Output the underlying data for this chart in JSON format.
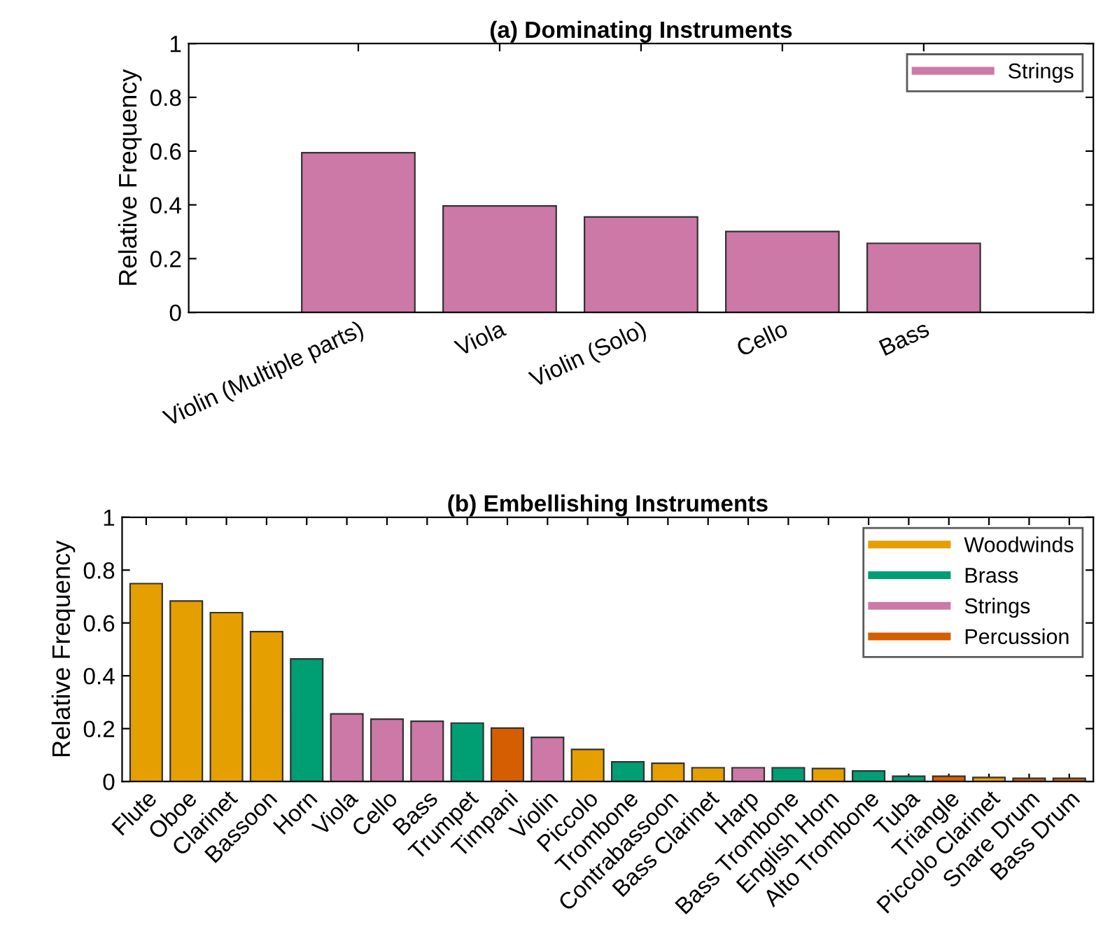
{
  "chart_data": [
    {
      "type": "bar",
      "title": "(a) Dominating Instruments",
      "ylabel": "Relative Frequency",
      "categories": [
        "Violin (Multiple parts)",
        "Viola",
        "Violin (Solo)",
        "Cello",
        "Bass"
      ],
      "series": [
        {
          "name": "Strings",
          "color": "#cc79a7",
          "values": [
            0.594,
            0.396,
            0.355,
            0.301,
            0.257
          ]
        }
      ],
      "ylim": [
        0,
        1
      ],
      "yticks": [
        0,
        0.2,
        0.4,
        0.6,
        0.8,
        1
      ],
      "legend": "top right"
    },
    {
      "type": "bar",
      "title": "(b) Embellishing Instruments",
      "ylabel": "Relative Frequency",
      "categories": [
        "Flute",
        "Oboe",
        "Clarinet",
        "Bassoon",
        "Horn",
        "Viola",
        "Cello",
        "Bass",
        "Trumpet",
        "Timpani",
        "Violin",
        "Piccolo",
        "Trombone",
        "Contrabassoon",
        "Bass Clarinet",
        "Harp",
        "Bass Trombone",
        "English Horn",
        "Alto Trombone",
        "Tuba",
        "Triangle",
        "Piccolo Clarinet",
        "Snare Drum",
        "Bass Drum"
      ],
      "series": [
        {
          "name": "Woodwinds",
          "color": "#e69f00",
          "values": [
            0.749,
            0.683,
            0.639,
            0.567,
            null,
            null,
            null,
            null,
            null,
            null,
            null,
            0.121,
            null,
            0.069,
            0.052,
            null,
            null,
            0.049,
            null,
            null,
            null,
            0.015,
            null,
            null
          ]
        },
        {
          "name": "Brass",
          "color": "#009e73",
          "values": [
            null,
            null,
            null,
            null,
            0.464,
            null,
            null,
            null,
            0.221,
            null,
            null,
            null,
            0.074,
            null,
            null,
            null,
            0.052,
            null,
            0.04,
            0.02,
            null,
            null,
            null,
            null
          ]
        },
        {
          "name": "Strings",
          "color": "#cc79a7",
          "values": [
            null,
            null,
            null,
            null,
            null,
            0.256,
            0.236,
            0.228,
            null,
            null,
            0.167,
            null,
            null,
            null,
            null,
            0.052,
            null,
            null,
            null,
            null,
            null,
            null,
            null,
            null
          ]
        },
        {
          "name": "Percussion",
          "color": "#d55e00",
          "values": [
            null,
            null,
            null,
            null,
            null,
            null,
            null,
            null,
            null,
            0.202,
            null,
            null,
            null,
            null,
            null,
            null,
            null,
            null,
            null,
            null,
            0.02,
            null,
            0.012,
            0.012
          ]
        }
      ],
      "ylim": [
        0,
        1
      ],
      "yticks": [
        0,
        0.2,
        0.4,
        0.6,
        0.8,
        1
      ],
      "legend": "top right"
    }
  ]
}
